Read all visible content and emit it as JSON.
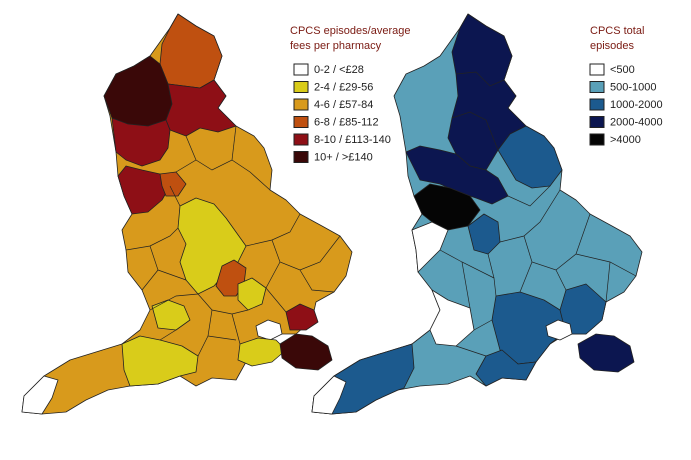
{
  "left_map": {
    "legend": {
      "title_lines": [
        "CPCS episodes/average",
        "fees per pharmacy"
      ],
      "items": [
        {
          "label": "0-2 / <£28",
          "color": "#ffffff"
        },
        {
          "label": "2-4 / £29-56",
          "color": "#d9cc1a"
        },
        {
          "label": "4-6 / £57-84",
          "color": "#d89a1c"
        },
        {
          "label": "6-8 / £85-112",
          "color": "#bf5010"
        },
        {
          "label": "8-10 / £113-140",
          "color": "#8e0f16"
        },
        {
          "label": "10+ / >£140",
          "color": "#3a0808"
        }
      ]
    }
  },
  "right_map": {
    "legend": {
      "title_lines": [
        "CPCS total",
        "episodes"
      ],
      "items": [
        {
          "label": "<500",
          "color": "#ffffff"
        },
        {
          "label": "500-1000",
          "color": "#5aa0b8"
        },
        {
          "label": "1000-2000",
          "color": "#1c5a8e"
        },
        {
          "label": "2000-4000",
          "color": "#0c1650"
        },
        {
          "label": ">4000",
          "color": "#050505"
        }
      ]
    }
  }
}
